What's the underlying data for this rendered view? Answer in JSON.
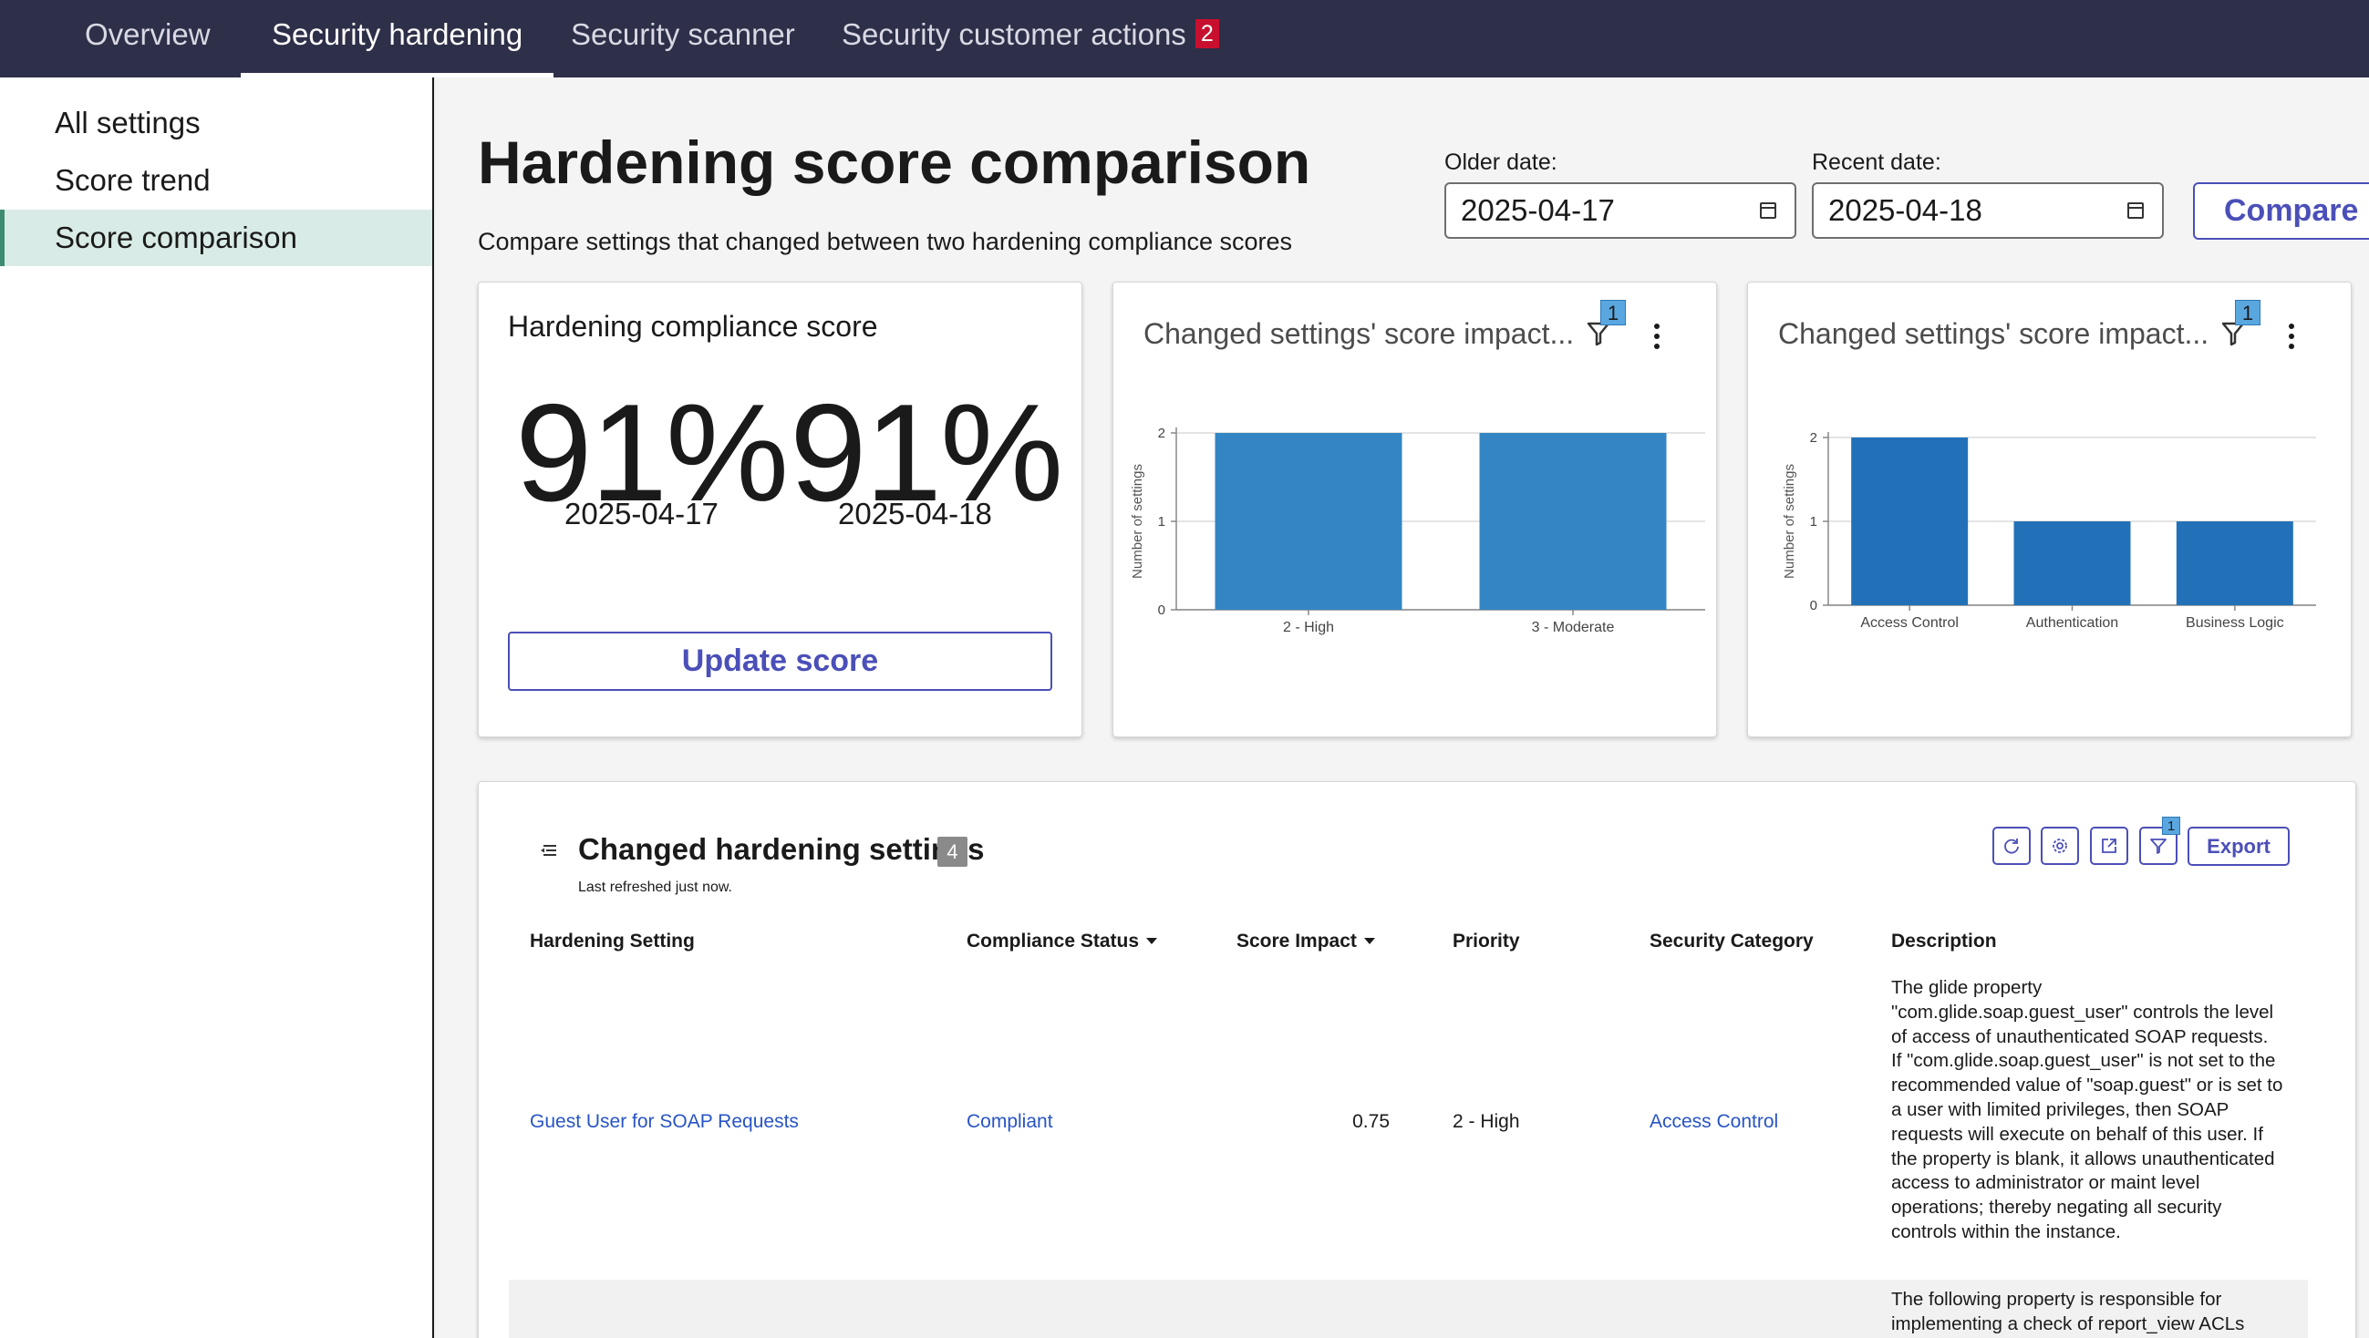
{
  "tabs": [
    {
      "label": "Overview"
    },
    {
      "label": "Security hardening"
    },
    {
      "label": "Security scanner"
    },
    {
      "label": "Security customer actions",
      "badge": "2"
    }
  ],
  "sidebar": {
    "items": [
      {
        "label": "All settings"
      },
      {
        "label": "Score trend"
      },
      {
        "label": "Score comparison"
      }
    ]
  },
  "page": {
    "title": "Hardening score comparison",
    "subtitle": "Compare settings that changed between two hardening compliance scores",
    "older_label": "Older date:",
    "older_value": "2025-04-17",
    "recent_label": "Recent date:",
    "recent_value": "2025-04-18",
    "compare_label": "Compare"
  },
  "score_card": {
    "title": "Hardening compliance score",
    "older_score": "91%",
    "older_date": "2025-04-17",
    "recent_score": "91%",
    "recent_date": "2025-04-18",
    "update_label": "Update score"
  },
  "chart_cards": [
    {
      "title": "Changed settings' score impact...",
      "filter_count": "1"
    },
    {
      "title": "Changed settings' score impact...",
      "filter_count": "1"
    }
  ],
  "chart_data": [
    {
      "type": "bar",
      "categories": [
        "2 - High",
        "3 - Moderate"
      ],
      "values": [
        2,
        2
      ],
      "ylabel": "Number of settings",
      "ylim": [
        0,
        2
      ],
      "yticks": [
        "0",
        "1",
        "2"
      ],
      "color": "#3386c3",
      "grid": true
    },
    {
      "type": "bar",
      "categories": [
        "Access Control",
        "Authentication",
        "Business Logic"
      ],
      "values": [
        2,
        1,
        1
      ],
      "ylabel": "Number of settings",
      "ylim": [
        0,
        2
      ],
      "yticks": [
        "0",
        "1",
        "2"
      ],
      "color": "#2271b8",
      "grid": true
    }
  ],
  "list": {
    "title": "Changed hardening settings",
    "count": "4",
    "refreshed": "Last refreshed just now.",
    "filter_count": "1",
    "export_label": "Export",
    "columns": [
      "Hardening Setting",
      "Compliance Status",
      "Score Impact",
      "Priority",
      "Security Category",
      "Description"
    ],
    "rows": [
      {
        "setting": "Guest User for SOAP Requests",
        "status": "Compliant",
        "impact": "0.75",
        "priority": "2 - High",
        "category": "Access Control",
        "description": "The glide property \"com.glide.soap.guest_user\" controls the level of access of unauthenticated SOAP requests. If \"com.glide.soap.guest_user\" is not set to the recommended value of \"soap.guest\" or is set to a user with limited privileges, then SOAP requests will execute on behalf of this user.  If the property is blank, it allows unauthenticated access to administrator or maint level operations; thereby negating all security controls within the instance."
      },
      {
        "description": "The following property is responsible for implementing a check of report_view ACLs"
      }
    ]
  }
}
